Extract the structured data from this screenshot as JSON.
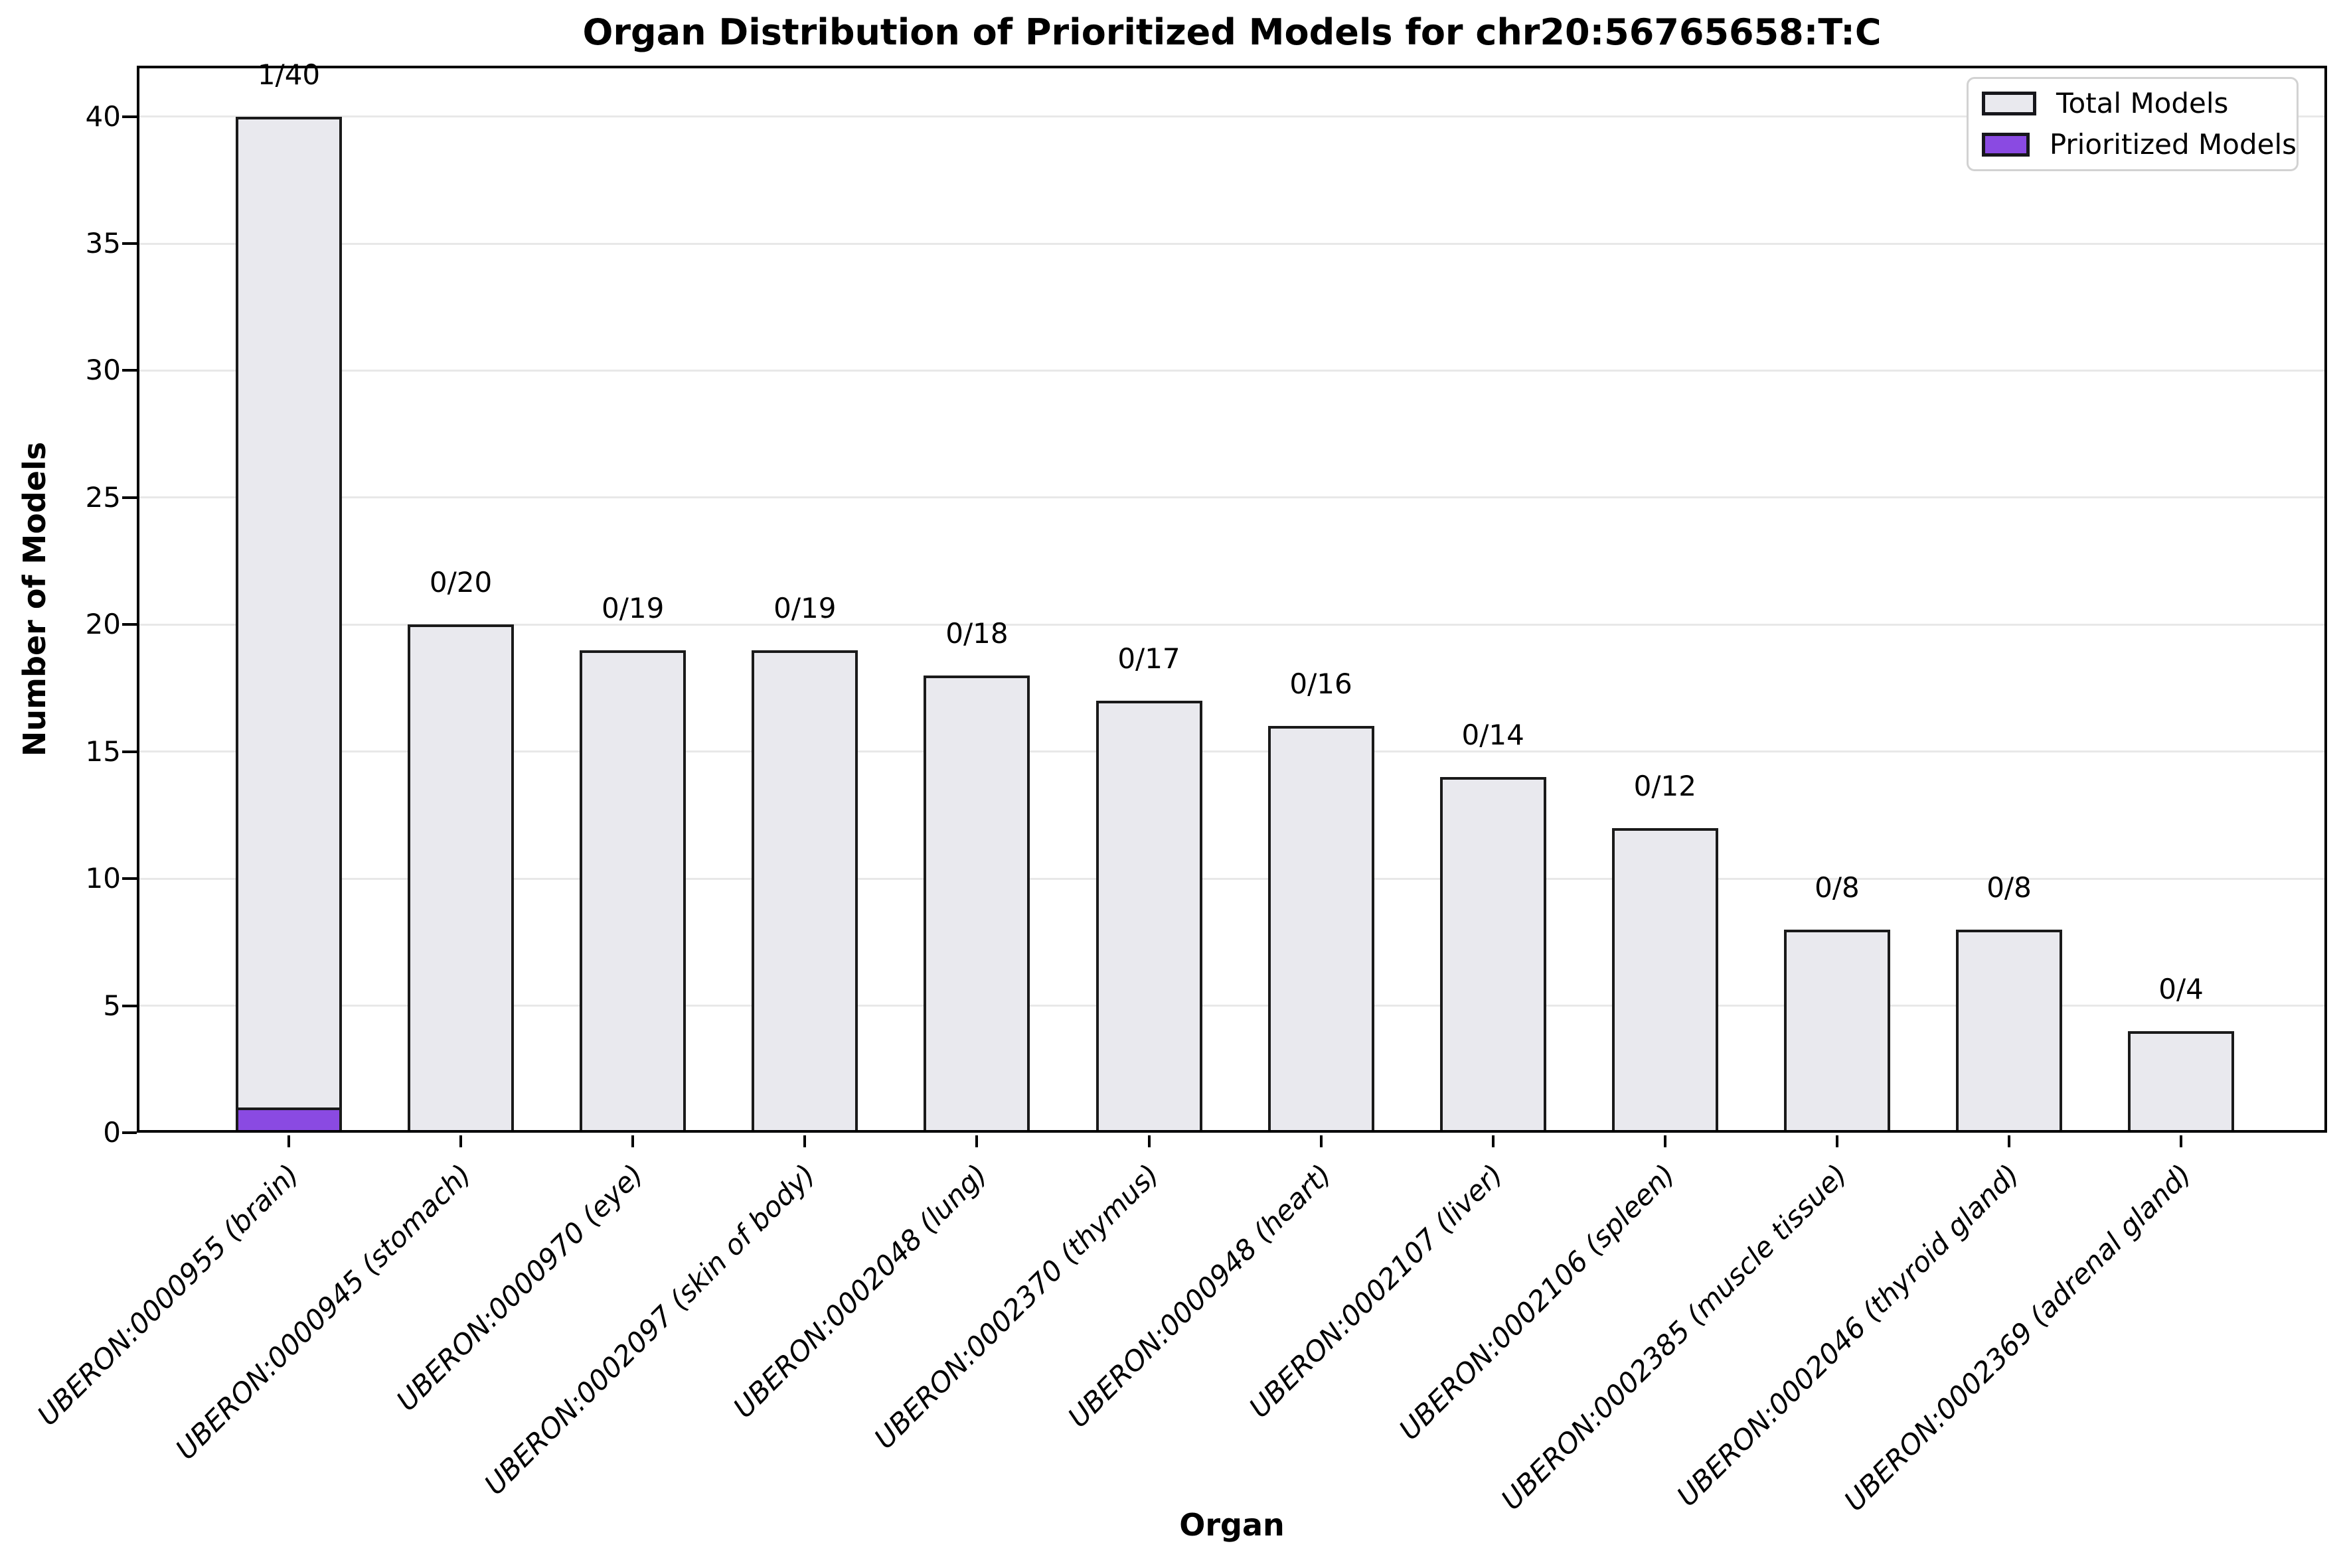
{
  "chart_data": {
    "type": "bar",
    "title": "Organ Distribution of Prioritized Models for chr20:56765658:T:C",
    "xlabel": "Organ",
    "ylabel": "Number of Models",
    "categories": [
      "UBERON:0000955 (brain)",
      "UBERON:0000945 (stomach)",
      "UBERON:0000970 (eye)",
      "UBERON:0002097 (skin of body)",
      "UBERON:0002048 (lung)",
      "UBERON:0002370 (thymus)",
      "UBERON:0000948 (heart)",
      "UBERON:0002107 (liver)",
      "UBERON:0002106 (spleen)",
      "UBERON:0002385 (muscle tissue)",
      "UBERON:0002046 (thyroid gland)",
      "UBERON:0002369 (adrenal gland)"
    ],
    "series": [
      {
        "name": "Total Models",
        "color": "#e9e9ee",
        "edge_color": "#1a1a1a",
        "values": [
          40,
          20,
          19,
          19,
          18,
          17,
          16,
          14,
          12,
          8,
          8,
          4
        ]
      },
      {
        "name": "Prioritized Models",
        "color": "#8a4ae2",
        "edge_color": "#1a1a1a",
        "values": [
          1,
          0,
          0,
          0,
          0,
          0,
          0,
          0,
          0,
          0,
          0,
          0
        ]
      }
    ],
    "bar_annotations": [
      "1/40",
      "0/20",
      "0/19",
      "0/19",
      "0/18",
      "0/17",
      "0/16",
      "0/14",
      "0/12",
      "0/8",
      "0/8",
      "0/4"
    ],
    "yticks": [
      0,
      5,
      10,
      15,
      20,
      25,
      30,
      35,
      40
    ],
    "ylim": [
      0,
      42
    ],
    "grid": "horizontal",
    "grid_color": "#e8e8e8",
    "legend_position": "upper right"
  }
}
